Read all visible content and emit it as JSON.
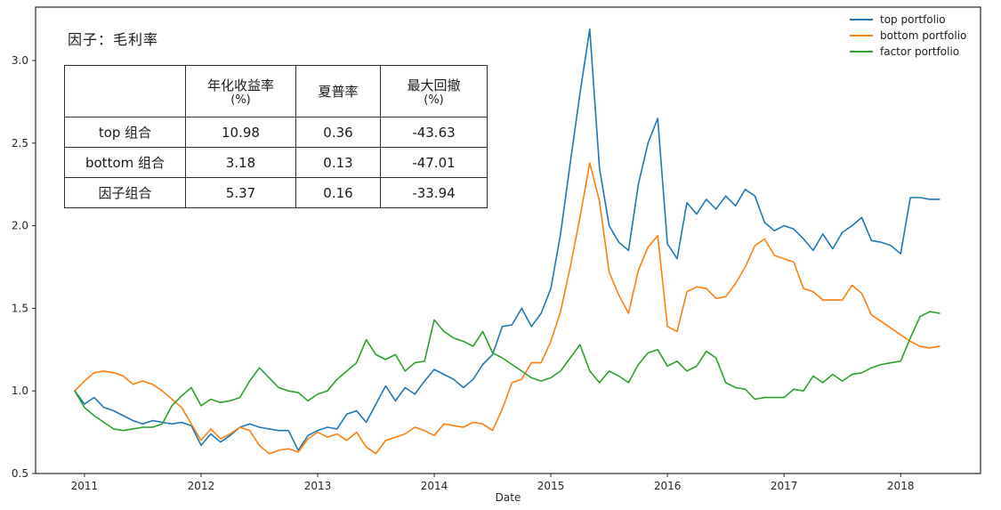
{
  "figure": {
    "title": "因子：毛利率"
  },
  "table": {
    "corner": "",
    "columns": [
      {
        "label": "年化收益率",
        "unit": "(%)"
      },
      {
        "label": "夏普率",
        "unit": ""
      },
      {
        "label": "最大回撤",
        "unit": "(%)"
      }
    ],
    "rows": [
      {
        "name": "top 组合",
        "annual_return": "10.98",
        "sharpe": "0.36",
        "max_drawdown": "-43.63"
      },
      {
        "name": "bottom 组合",
        "annual_return": "3.18",
        "sharpe": "0.13",
        "max_drawdown": "-47.01"
      },
      {
        "name": "因子组合",
        "annual_return": "5.37",
        "sharpe": "0.16",
        "max_drawdown": "-33.94"
      }
    ]
  },
  "legend": {
    "items": [
      {
        "label": "top portfolio",
        "color": "#1f77b4"
      },
      {
        "label": "bottom portfolio",
        "color": "#ff7f0e"
      },
      {
        "label": "factor portfolio",
        "color": "#2ca02c"
      }
    ]
  },
  "chart_data": {
    "type": "line",
    "title": "因子：毛利率",
    "xlabel": "Date",
    "ylabel": "",
    "x_start_month": "2010-12",
    "x_frequency": "monthly",
    "x_tick_labels": [
      "2011",
      "2012",
      "2013",
      "2014",
      "2015",
      "2016",
      "2017",
      "2018"
    ],
    "x_tick_month_index": [
      1,
      13,
      25,
      37,
      49,
      61,
      73,
      85
    ],
    "y_ticks": [
      0.5,
      1.0,
      1.5,
      2.0,
      2.5,
      3.0
    ],
    "ylim": [
      0.5,
      3.32
    ],
    "grid": false,
    "legend_position": "upper right",
    "series": [
      {
        "name": "top portfolio",
        "color": "#1f77b4",
        "values": [
          1.0,
          0.92,
          0.96,
          0.9,
          0.88,
          0.85,
          0.82,
          0.8,
          0.82,
          0.81,
          0.8,
          0.81,
          0.79,
          0.67,
          0.74,
          0.69,
          0.73,
          0.78,
          0.8,
          0.78,
          0.77,
          0.76,
          0.76,
          0.64,
          0.73,
          0.76,
          0.78,
          0.77,
          0.86,
          0.88,
          0.81,
          0.92,
          1.03,
          0.94,
          1.02,
          0.98,
          1.06,
          1.13,
          1.1,
          1.07,
          1.02,
          1.07,
          1.16,
          1.22,
          1.39,
          1.4,
          1.5,
          1.39,
          1.47,
          1.62,
          1.95,
          2.38,
          2.8,
          3.19,
          2.35,
          2.0,
          1.9,
          1.85,
          2.25,
          2.5,
          2.65,
          1.89,
          1.8,
          2.14,
          2.07,
          2.16,
          2.1,
          2.18,
          2.12,
          2.22,
          2.18,
          2.02,
          1.97,
          2.0,
          1.98,
          1.92,
          1.85,
          1.95,
          1.86,
          1.96,
          2.0,
          2.05,
          1.91,
          1.9,
          1.88,
          1.83,
          2.17,
          2.17,
          2.16,
          2.16
        ]
      },
      {
        "name": "bottom portfolio",
        "color": "#ff7f0e",
        "values": [
          1.0,
          1.06,
          1.11,
          1.12,
          1.11,
          1.09,
          1.04,
          1.06,
          1.04,
          1.0,
          0.95,
          0.9,
          0.8,
          0.7,
          0.77,
          0.71,
          0.74,
          0.78,
          0.76,
          0.67,
          0.62,
          0.64,
          0.65,
          0.63,
          0.71,
          0.75,
          0.72,
          0.74,
          0.7,
          0.75,
          0.66,
          0.62,
          0.7,
          0.72,
          0.74,
          0.78,
          0.76,
          0.73,
          0.8,
          0.79,
          0.78,
          0.81,
          0.8,
          0.76,
          0.89,
          1.05,
          1.07,
          1.17,
          1.17,
          1.3,
          1.48,
          1.75,
          2.05,
          2.38,
          2.15,
          1.72,
          1.58,
          1.47,
          1.73,
          1.87,
          1.94,
          1.39,
          1.36,
          1.6,
          1.63,
          1.62,
          1.56,
          1.57,
          1.65,
          1.75,
          1.88,
          1.92,
          1.82,
          1.8,
          1.78,
          1.62,
          1.6,
          1.55,
          1.55,
          1.55,
          1.64,
          1.59,
          1.46,
          1.42,
          1.38,
          1.34,
          1.3,
          1.27,
          1.26,
          1.27
        ]
      },
      {
        "name": "factor portfolio",
        "color": "#2ca02c",
        "values": [
          1.0,
          0.9,
          0.85,
          0.81,
          0.77,
          0.76,
          0.77,
          0.78,
          0.78,
          0.8,
          0.91,
          0.97,
          1.02,
          0.91,
          0.95,
          0.93,
          0.94,
          0.96,
          1.06,
          1.14,
          1.08,
          1.02,
          1.0,
          0.99,
          0.94,
          0.98,
          1.0,
          1.07,
          1.12,
          1.17,
          1.31,
          1.22,
          1.19,
          1.22,
          1.12,
          1.17,
          1.18,
          1.43,
          1.36,
          1.32,
          1.3,
          1.27,
          1.36,
          1.23,
          1.2,
          1.16,
          1.12,
          1.08,
          1.06,
          1.08,
          1.12,
          1.2,
          1.28,
          1.12,
          1.05,
          1.12,
          1.09,
          1.05,
          1.16,
          1.23,
          1.25,
          1.15,
          1.18,
          1.12,
          1.15,
          1.24,
          1.2,
          1.05,
          1.02,
          1.01,
          0.95,
          0.96,
          0.96,
          0.96,
          1.01,
          1.0,
          1.09,
          1.05,
          1.1,
          1.06,
          1.1,
          1.11,
          1.14,
          1.16,
          1.17,
          1.18,
          1.32,
          1.45,
          1.48,
          1.47
        ]
      }
    ]
  },
  "colors": {
    "background": "#ffffff",
    "spine": "#262626",
    "text": "#1a1a1a"
  }
}
